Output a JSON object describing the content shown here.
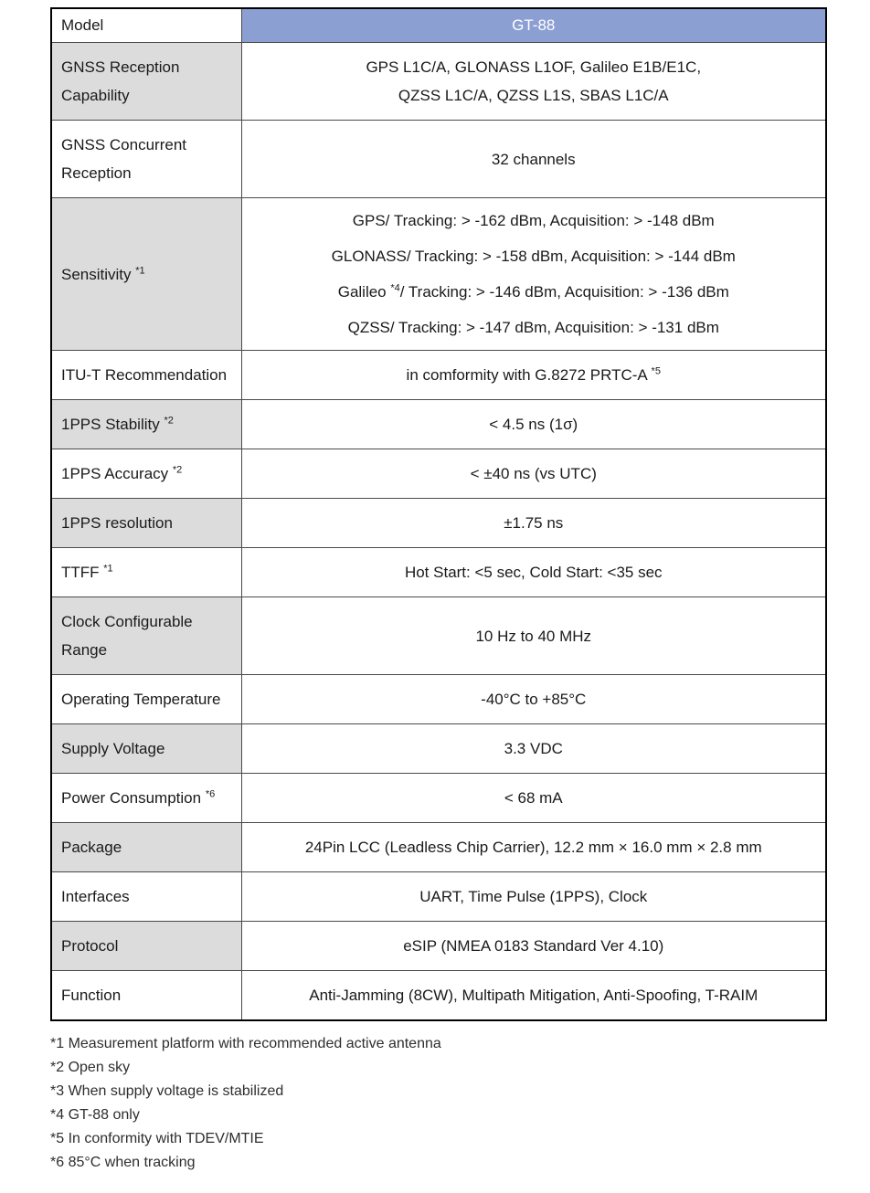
{
  "table": {
    "header": {
      "label": "Model",
      "value": "GT-88"
    },
    "rows": [
      {
        "label": "GNSS Reception Capability",
        "value_lines": [
          "GPS L1C/A, GLONASS L1OF, Galileo E1B/E1C,",
          "QZSS L1C/A, QZSS L1S, SBAS L1C/A"
        ]
      },
      {
        "label": "GNSS Concurrent Reception",
        "value_lines": [
          "32 channels"
        ]
      },
      {
        "label": "Sensitivity *1",
        "value_lines": [
          "GPS/ Tracking: > -162 dBm, Acquisition: > -148 dBm",
          "GLONASS/ Tracking: > -158 dBm, Acquisition: > -144 dBm",
          "Galileo *4/ Tracking: > -146 dBm, Acquisition: > -136 dBm",
          "QZSS/ Tracking: > -147 dBm, Acquisition: > -131 dBm"
        ]
      },
      {
        "label": "ITU-T Recommendation",
        "value_lines": [
          "in comformity with G.8272 PRTC-A *5"
        ]
      },
      {
        "label": "1PPS Stability *2",
        "value_lines": [
          "< 4.5 ns (1σ)"
        ]
      },
      {
        "label": "1PPS Accuracy *2",
        "value_lines": [
          "< ±40 ns (vs UTC)"
        ]
      },
      {
        "label": "1PPS resolution",
        "value_lines": [
          "±1.75 ns"
        ]
      },
      {
        "label": "TTFF *1",
        "value_lines": [
          "Hot Start: <5 sec, Cold Start: <35 sec"
        ]
      },
      {
        "label": "Clock Configurable Range",
        "value_lines": [
          "10 Hz to 40 MHz"
        ]
      },
      {
        "label": "Operating Temperature",
        "value_lines": [
          "-40°C to +85°C"
        ]
      },
      {
        "label": "Supply Voltage",
        "value_lines": [
          "3.3 VDC"
        ]
      },
      {
        "label": "Power Consumption *6",
        "value_lines": [
          "< 68 mA"
        ]
      },
      {
        "label": "Package",
        "value_lines": [
          "24Pin LCC (Leadless Chip Carrier), 12.2 mm × 16.0 mm × 2.8 mm"
        ]
      },
      {
        "label": "Interfaces",
        "value_lines": [
          "UART, Time Pulse (1PPS), Clock"
        ]
      },
      {
        "label": "Protocol",
        "value_lines": [
          "eSIP (NMEA 0183 Standard Ver 4.10)"
        ]
      },
      {
        "label": "Function",
        "value_lines": [
          "Anti-Jamming (8CW), Multipath Mitigation, Anti-Spoofing, T-RAIM"
        ]
      }
    ]
  },
  "footnotes": [
    "*1 Measurement platform with recommended active antenna",
    "*2 Open sky",
    "*3 When supply voltage is stabilized",
    "*4 GT-88 only",
    "*5 In conformity with TDEV/MTIE",
    "*6 85°C when tracking"
  ],
  "colors": {
    "header_bg": "#8c9fd2",
    "header_text": "#ffffff",
    "label_shaded_bg": "#dcdcdc",
    "border_outer": "#000000",
    "border_inner": "#4a4a4a"
  }
}
